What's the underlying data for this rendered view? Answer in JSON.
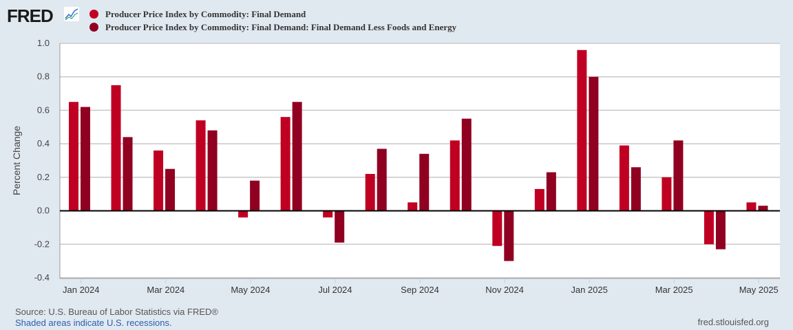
{
  "header": {
    "logo": "FRED"
  },
  "chart_data": {
    "type": "bar",
    "ylabel": "Percent Change",
    "ylim": [
      -0.4,
      1.0
    ],
    "yticks": [
      "1.0",
      "0.8",
      "0.6",
      "0.4",
      "0.2",
      "0.0",
      "-0.2",
      "-0.4"
    ],
    "categories": [
      "Jan 2024",
      "Feb 2024",
      "Mar 2024",
      "Apr 2024",
      "May 2024",
      "Jun 2024",
      "Jul 2024",
      "Aug 2024",
      "Sep 2024",
      "Oct 2024",
      "Nov 2024",
      "Dec 2024",
      "Jan 2025",
      "Feb 2025",
      "Mar 2025",
      "Apr 2025",
      "May 2025"
    ],
    "xtick_labels": [
      "Jan 2024",
      "Mar 2024",
      "May 2024",
      "Jul 2024",
      "Sep 2024",
      "Nov 2024",
      "Jan 2025",
      "Mar 2025",
      "May 2025"
    ],
    "grid": true,
    "series": [
      {
        "name": "Producer Price Index by Commodity: Final Demand",
        "color": "#c00022",
        "values": [
          0.65,
          0.75,
          0.36,
          0.54,
          -0.04,
          0.56,
          -0.04,
          0.22,
          0.05,
          0.42,
          -0.21,
          0.13,
          0.96,
          0.39,
          0.2,
          -0.2,
          0.05
        ]
      },
      {
        "name": "Producer Price Index by Commodity: Final Demand: Final Demand Less Foods and Energy",
        "color": "#900021",
        "values": [
          0.62,
          0.44,
          0.25,
          0.48,
          0.18,
          0.65,
          -0.19,
          0.37,
          0.34,
          0.55,
          -0.3,
          0.23,
          0.8,
          0.26,
          0.42,
          -0.23,
          0.03
        ]
      }
    ]
  },
  "footer": {
    "source": "Source: U.S. Bureau of Labor Statistics via FRED®",
    "recessions": "Shaded areas indicate U.S. recessions.",
    "site": "fred.stlouisfed.org"
  }
}
